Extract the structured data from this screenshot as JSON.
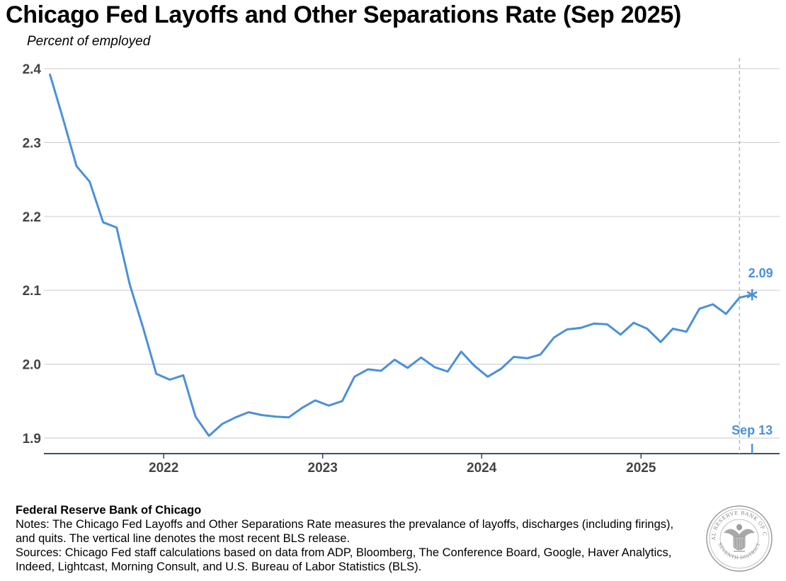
{
  "chart_data": {
    "type": "line",
    "title": "Chicago Fed Layoffs and Other Separations Rate (Sep 2025)",
    "subtitle": "Percent of employed",
    "xlabel": "",
    "ylabel": "",
    "ylim": [
      1.88,
      2.41
    ],
    "xlim": [
      "2021-04-01",
      "2025-10-25"
    ],
    "y_ticks": [
      "2.4",
      "2.3",
      "2.2",
      "2.1",
      "2.0",
      "1.9"
    ],
    "y_tick_values": [
      2.4,
      2.3,
      2.2,
      2.1,
      2.0,
      1.9
    ],
    "x_ticks": [
      "2022",
      "2023",
      "2024",
      "2025"
    ],
    "x_tick_dates": [
      "2022-01-01",
      "2023-01-01",
      "2024-01-01",
      "2025-01-01"
    ],
    "grid": "horizontal",
    "series": [
      {
        "color": "#4a90d9",
        "points": [
          [
            "2021-04-15",
            2.392
          ],
          [
            "2021-05-15",
            2.332
          ],
          [
            "2021-06-15",
            2.268
          ],
          [
            "2021-07-15",
            2.247
          ],
          [
            "2021-08-15",
            2.192
          ],
          [
            "2021-09-15",
            2.185
          ],
          [
            "2021-10-15",
            2.108
          ],
          [
            "2021-11-15",
            2.049
          ],
          [
            "2021-12-15",
            1.987
          ],
          [
            "2022-01-15",
            1.979
          ],
          [
            "2022-02-15",
            1.985
          ],
          [
            "2022-03-15",
            1.929
          ],
          [
            "2022-04-15",
            1.903
          ],
          [
            "2022-05-15",
            1.919
          ],
          [
            "2022-06-15",
            1.928
          ],
          [
            "2022-07-15",
            1.935
          ],
          [
            "2022-08-15",
            1.931
          ],
          [
            "2022-09-15",
            1.929
          ],
          [
            "2022-10-15",
            1.928
          ],
          [
            "2022-11-15",
            1.941
          ],
          [
            "2022-12-15",
            1.951
          ],
          [
            "2023-01-15",
            1.944
          ],
          [
            "2023-02-15",
            1.95
          ],
          [
            "2023-03-15",
            1.983
          ],
          [
            "2023-04-15",
            1.993
          ],
          [
            "2023-05-15",
            1.991
          ],
          [
            "2023-06-15",
            2.006
          ],
          [
            "2023-07-15",
            1.995
          ],
          [
            "2023-08-15",
            2.009
          ],
          [
            "2023-09-15",
            1.996
          ],
          [
            "2023-10-15",
            1.99
          ],
          [
            "2023-11-15",
            2.017
          ],
          [
            "2023-12-15",
            1.998
          ],
          [
            "2024-01-15",
            1.983
          ],
          [
            "2024-02-15",
            1.994
          ],
          [
            "2024-03-15",
            2.01
          ],
          [
            "2024-04-15",
            2.008
          ],
          [
            "2024-05-15",
            2.013
          ],
          [
            "2024-06-15",
            2.036
          ],
          [
            "2024-07-15",
            2.047
          ],
          [
            "2024-08-15",
            2.049
          ],
          [
            "2024-09-15",
            2.055
          ],
          [
            "2024-10-15",
            2.054
          ],
          [
            "2024-11-15",
            2.04
          ],
          [
            "2024-12-15",
            2.056
          ],
          [
            "2025-01-15",
            2.048
          ],
          [
            "2025-02-15",
            2.03
          ],
          [
            "2025-03-15",
            2.048
          ],
          [
            "2025-04-15",
            2.044
          ],
          [
            "2025-05-15",
            2.075
          ],
          [
            "2025-06-15",
            2.081
          ],
          [
            "2025-07-15",
            2.068
          ],
          [
            "2025-08-15",
            2.09
          ],
          [
            "2025-09-13",
            2.094
          ]
        ]
      }
    ],
    "latest_point": {
      "date": "2025-09-13",
      "value": 2.094,
      "label": "2.09",
      "marker": "asterisk"
    },
    "vertical_line": {
      "date": "2025-08-15",
      "style": "dashed",
      "color": "#b5b5b5"
    },
    "date_marker": {
      "date": "2025-09-13",
      "label": "Sep 13"
    },
    "colors": {
      "series": "#4a90d9",
      "grid": "#d3d3d3",
      "axis": "#1f3a5a",
      "tick_label": "#444444"
    }
  },
  "footer": {
    "org": "Federal Reserve Bank of Chicago",
    "notes": "Notes: The Chicago Fed Layoffs and Other Separations Rate measures the prevalance of layoffs, discharges (including firings), and quits. The vertical line denotes the most recent BLS release.",
    "sources": "Sources: Chicago Fed staff calculations based on data from ADP, Bloomberg, The Conference Board, Google, Haver Analytics, Indeed, Lightcast, Morning Consult, and U.S. Bureau of Labor Statistics (BLS)."
  },
  "seal": {
    "ring_text_top": "FEDERAL RESERVE BANK OF CHICAGO",
    "ring_text_bottom": "SEVENTH DISTRICT",
    "icon": "federal-reserve-seal-icon"
  }
}
